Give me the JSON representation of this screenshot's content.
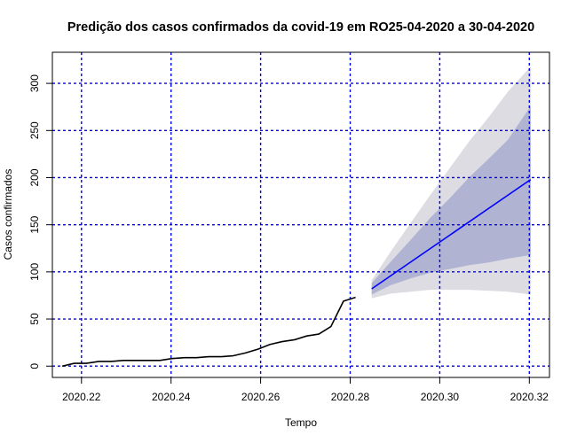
{
  "chart_data": {
    "type": "line",
    "title": "Predição dos casos confirmados da covid-19 em RO25-04-2020 a 30-04-2020",
    "xlabel": "Tempo",
    "ylabel": "Casos confirmados",
    "xlim": [
      2020.2135,
      2020.3245
    ],
    "ylim": [
      -12,
      333
    ],
    "x_ticks": [
      2020.22,
      2020.24,
      2020.26,
      2020.28,
      2020.3,
      2020.32
    ],
    "x_tick_labels": [
      "2020.22",
      "2020.24",
      "2020.26",
      "2020.28",
      "2020.30",
      "2020.32"
    ],
    "y_ticks": [
      0,
      50,
      100,
      150,
      200,
      250,
      300
    ],
    "y_tick_labels": [
      "0",
      "50",
      "100",
      "150",
      "200",
      "250",
      "300"
    ],
    "grid": true,
    "grid_color": "#0000ff",
    "series": [
      {
        "color": "#000000",
        "x": [
          2020.2157,
          2020.2184,
          2020.2211,
          2020.2239,
          2020.2266,
          2020.2293,
          2020.2321,
          2020.2348,
          2020.2375,
          2020.2402,
          2020.243,
          2020.2457,
          2020.2484,
          2020.2512,
          2020.2539,
          2020.2566,
          2020.2594,
          2020.2621,
          2020.2648,
          2020.2676,
          2020.2703,
          2020.273,
          2020.2757,
          2020.2785,
          2020.2812
        ],
        "values": [
          0,
          3,
          3,
          5,
          5,
          6,
          6,
          6,
          6,
          8,
          9,
          9,
          10,
          10,
          11,
          14,
          18,
          23,
          26,
          28,
          32,
          34,
          42,
          69,
          73
        ]
      },
      {
        "color": "#0000ff",
        "x": [
          2020.2848,
          2020.3203
        ],
        "values": [
          82,
          198
        ]
      }
    ],
    "forecast_bands": [
      {
        "level": "95%",
        "color": "#dcdce2",
        "x": [
          2020.2848,
          2020.2891,
          2020.2935,
          2020.2978,
          2020.3022,
          2020.3065,
          2020.3109,
          2020.3152,
          2020.3203
        ],
        "lower": [
          72,
          77,
          79,
          81,
          81,
          81,
          80,
          79,
          76
        ],
        "upper": [
          91,
          122,
          152,
          181,
          210,
          238,
          264,
          291,
          318
        ]
      },
      {
        "level": "80%",
        "color": "#b0b4d2",
        "x": [
          2020.2848,
          2020.2891,
          2020.2935,
          2020.2978,
          2020.3022,
          2020.3065,
          2020.3109,
          2020.3152,
          2020.3203
        ],
        "lower": [
          76,
          86,
          93,
          99,
          103,
          107,
          110,
          114,
          118
        ],
        "upper": [
          88,
          111,
          134,
          157,
          178,
          200,
          220,
          240,
          276
        ]
      }
    ]
  }
}
